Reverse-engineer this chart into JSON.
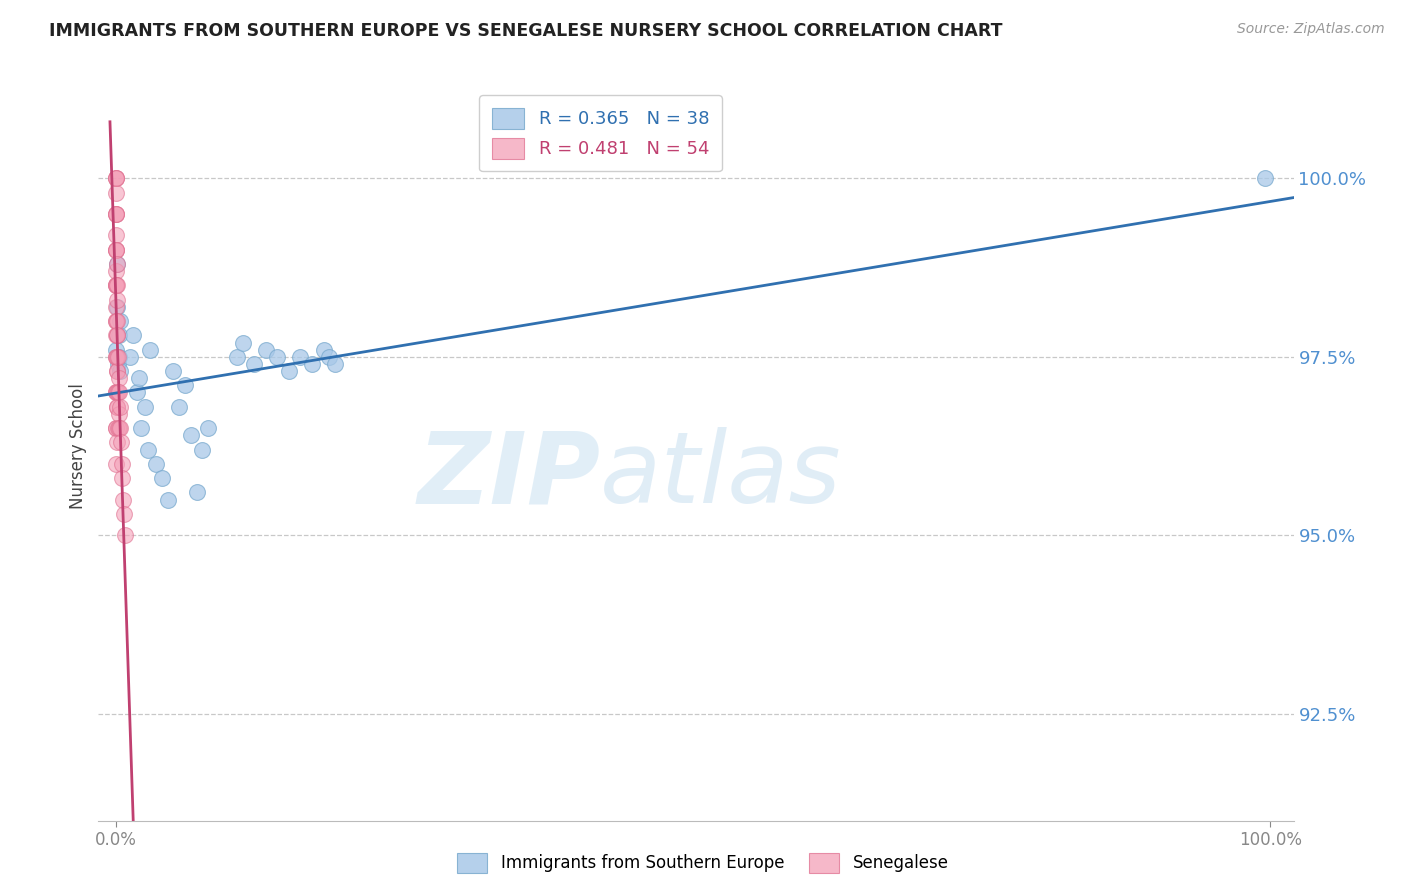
{
  "title": "IMMIGRANTS FROM SOUTHERN EUROPE VS SENEGALESE NURSERY SCHOOL CORRELATION CHART",
  "source": "Source: ZipAtlas.com",
  "ylabel": "Nursery School",
  "legend_label_blue": "Immigrants from Southern Europe",
  "legend_label_pink": "Senegalese",
  "xlim": [
    -1.5,
    102
  ],
  "ylim": [
    91.0,
    101.5
  ],
  "yticks": [
    92.5,
    95.0,
    97.5,
    100.0
  ],
  "background_color": "#ffffff",
  "grid_color": "#c8c8c8",
  "blue_color": "#a8c8e8",
  "pink_color": "#f4a0b8",
  "blue_line_color": "#3070b0",
  "pink_line_color": "#c04070",
  "blue_marker_edge": "#7aaace",
  "pink_marker_edge": "#e07090",
  "ytick_color": "#5090d0",
  "blue_x": [
    0.05,
    0.08,
    0.12,
    0.18,
    0.25,
    0.3,
    0.35,
    0.4,
    1.2,
    1.5,
    1.8,
    2.0,
    2.2,
    2.5,
    2.8,
    3.0,
    3.5,
    4.0,
    4.5,
    5.0,
    5.5,
    6.0,
    6.5,
    7.0,
    7.5,
    8.0,
    10.5,
    11.0,
    12.0,
    13.0,
    14.0,
    15.0,
    16.0,
    17.0,
    18.0,
    18.5,
    19.0,
    99.5
  ],
  "blue_y": [
    97.6,
    98.8,
    98.2,
    97.4,
    97.8,
    97.5,
    98.0,
    97.3,
    97.5,
    97.8,
    97.0,
    97.2,
    96.5,
    96.8,
    96.2,
    97.6,
    96.0,
    95.8,
    95.5,
    97.3,
    96.8,
    97.1,
    96.4,
    95.6,
    96.2,
    96.5,
    97.5,
    97.7,
    97.4,
    97.6,
    97.5,
    97.3,
    97.5,
    97.4,
    97.6,
    97.5,
    97.4,
    100.0
  ],
  "pink_x": [
    0.0,
    0.0,
    0.0,
    0.0,
    0.0,
    0.0,
    0.0,
    0.0,
    0.0,
    0.0,
    0.02,
    0.02,
    0.02,
    0.02,
    0.02,
    0.02,
    0.02,
    0.02,
    0.05,
    0.05,
    0.05,
    0.05,
    0.05,
    0.05,
    0.05,
    0.05,
    0.08,
    0.08,
    0.08,
    0.08,
    0.08,
    0.08,
    0.12,
    0.12,
    0.12,
    0.12,
    0.15,
    0.15,
    0.15,
    0.2,
    0.2,
    0.2,
    0.25,
    0.25,
    0.3,
    0.3,
    0.35,
    0.4,
    0.45,
    0.5,
    0.55,
    0.6,
    0.7,
    0.8
  ],
  "pink_y": [
    100.0,
    100.0,
    99.8,
    99.5,
    99.2,
    99.0,
    98.7,
    98.5,
    98.2,
    97.8,
    100.0,
    99.5,
    99.0,
    98.5,
    98.0,
    97.5,
    97.0,
    96.5,
    99.5,
    99.0,
    98.5,
    98.0,
    97.5,
    97.0,
    96.5,
    96.0,
    98.8,
    98.3,
    97.8,
    97.3,
    96.8,
    96.3,
    98.5,
    98.0,
    97.5,
    97.0,
    97.8,
    97.3,
    96.8,
    97.5,
    97.0,
    96.5,
    97.2,
    96.7,
    97.0,
    96.5,
    96.8,
    96.5,
    96.3,
    96.0,
    95.8,
    95.5,
    95.3,
    95.0
  ],
  "watermark_zip": "ZIP",
  "watermark_atlas": "atlas"
}
